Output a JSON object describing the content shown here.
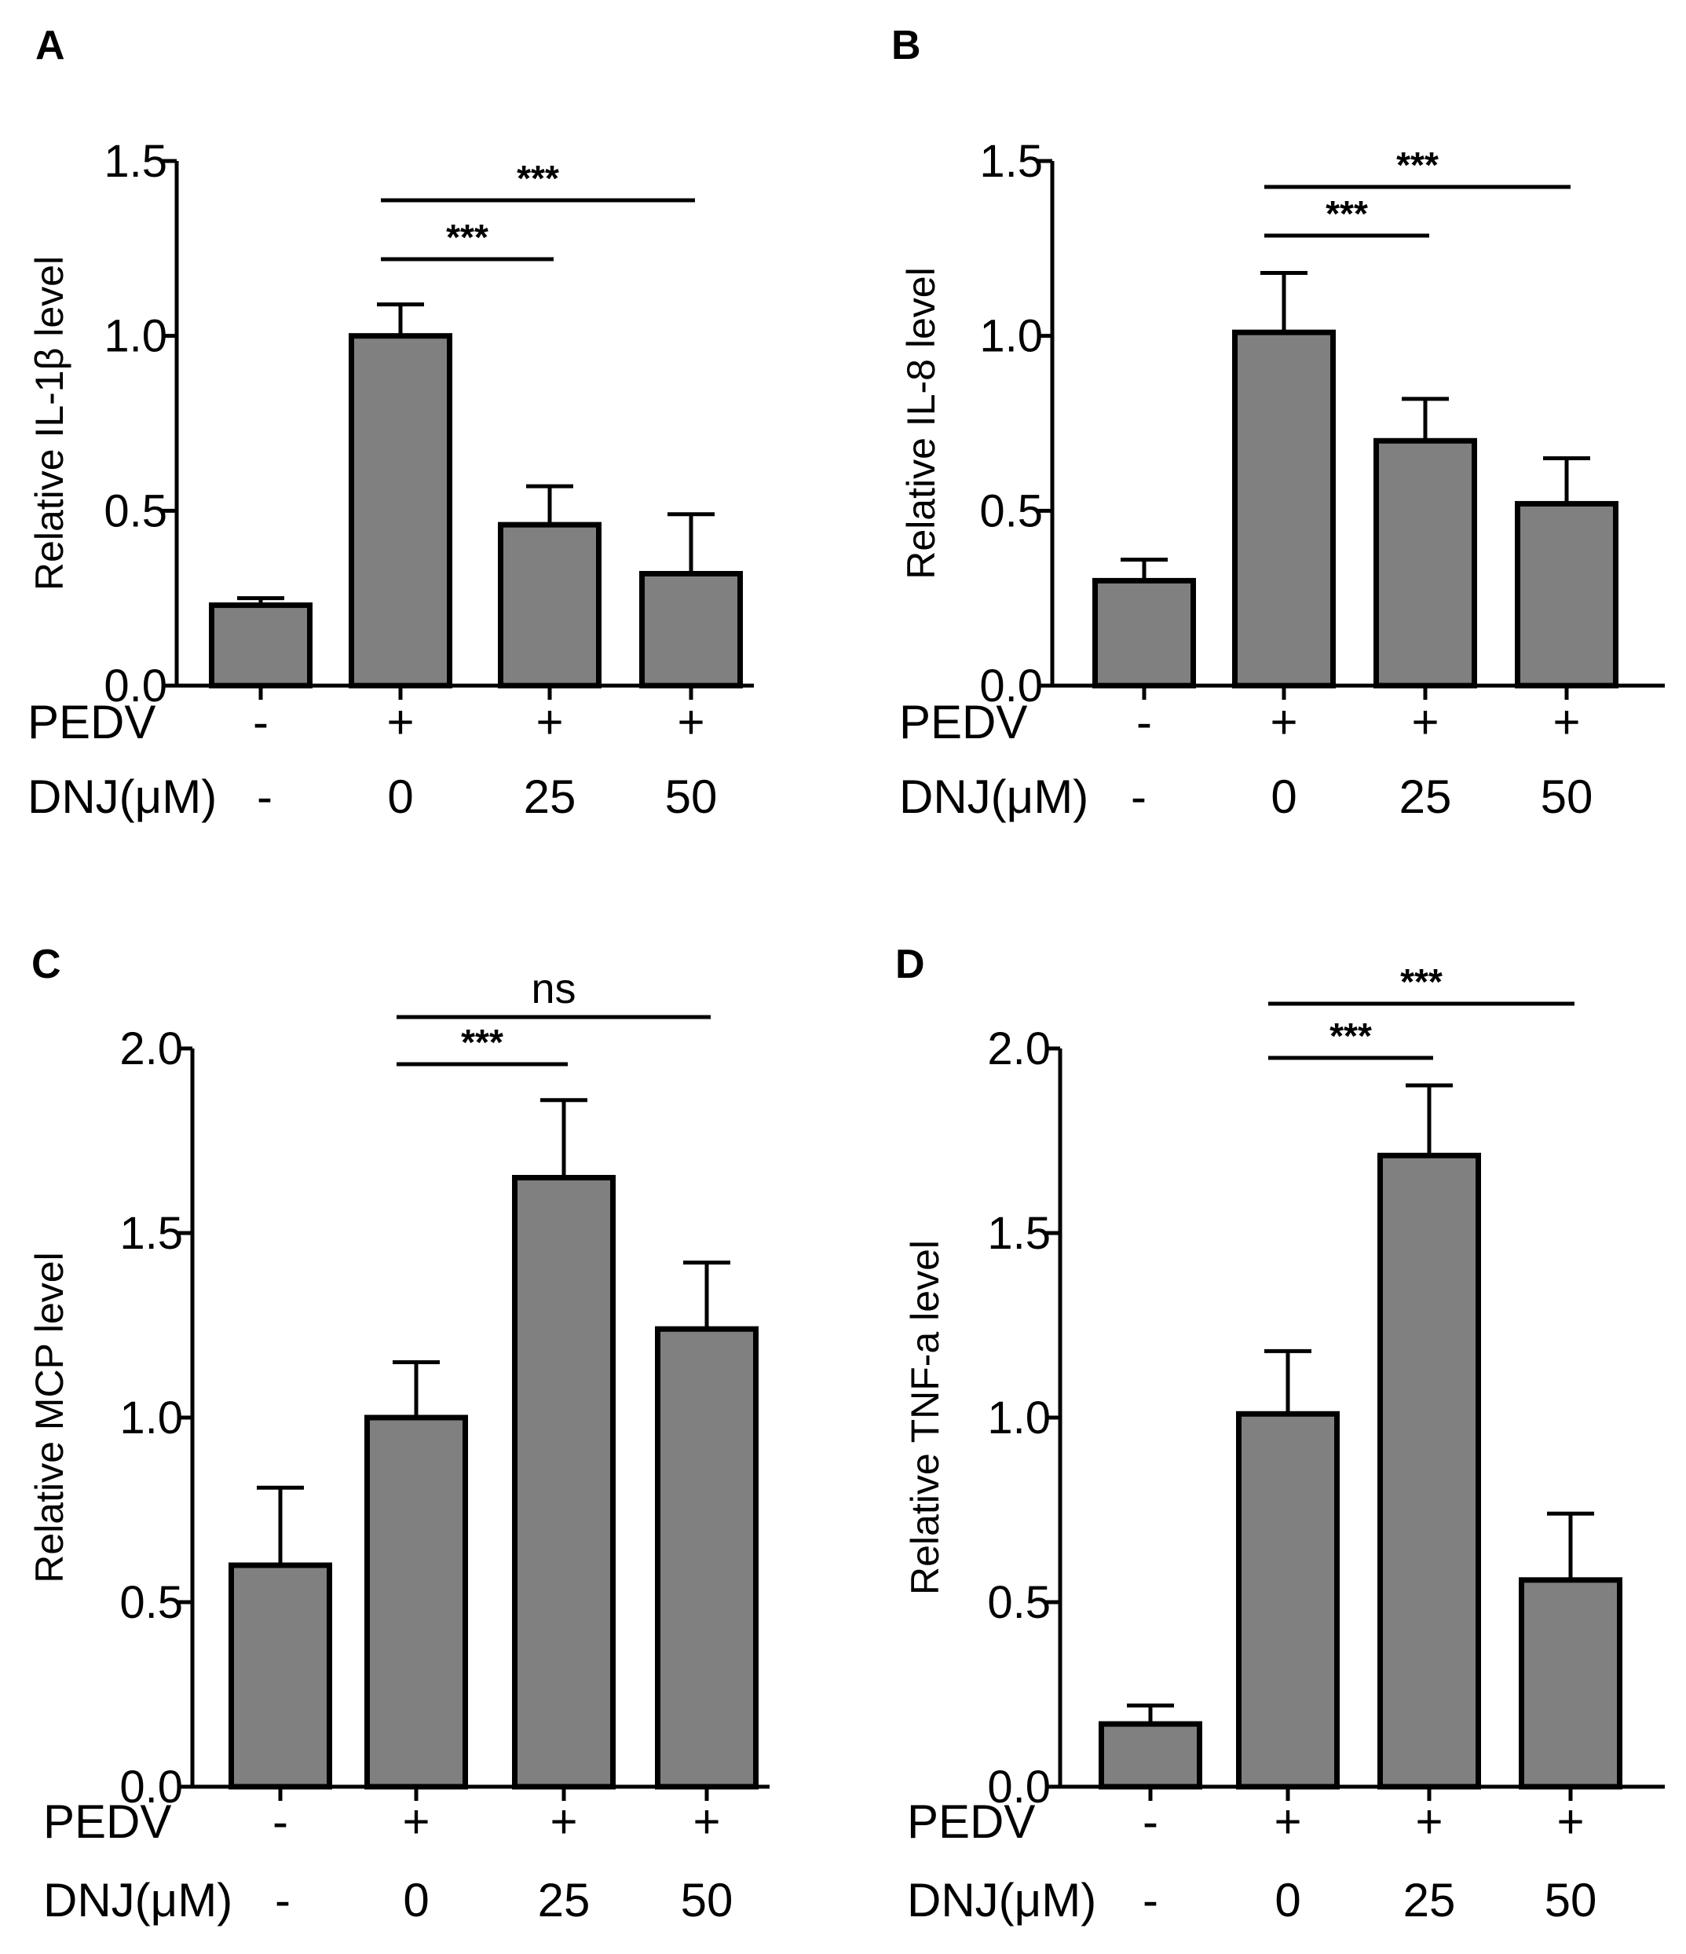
{
  "chart_data": [
    {
      "panel": "A",
      "type": "bar",
      "ylabel": "Relative IL-1β level",
      "ylim": [
        0,
        1.5
      ],
      "yticks": [
        "0.0",
        "0.5",
        "1.0",
        "1.5"
      ],
      "row_labels": [
        "PEDV",
        "DNJ(μM)"
      ],
      "conditions": {
        "PEDV": [
          "-",
          "+",
          "+",
          "+"
        ],
        "DNJ": [
          "-",
          "0",
          "25",
          "50"
        ]
      },
      "values": [
        0.23,
        1.0,
        0.46,
        0.32
      ],
      "errors": [
        0.02,
        0.09,
        0.11,
        0.17
      ],
      "significance": [
        {
          "from": 1,
          "to": 2,
          "label": "***"
        },
        {
          "from": 1,
          "to": 3,
          "label": "***"
        }
      ]
    },
    {
      "panel": "B",
      "type": "bar",
      "ylabel": "Relative IL-8 level",
      "ylim": [
        0,
        1.5
      ],
      "yticks": [
        "0.0",
        "0.5",
        "1.0",
        "1.5"
      ],
      "row_labels": [
        "PEDV",
        "DNJ(μM)"
      ],
      "conditions": {
        "PEDV": [
          "-",
          "+",
          "+",
          "+"
        ],
        "DNJ": [
          "-",
          "0",
          "25",
          "50"
        ]
      },
      "values": [
        0.3,
        1.01,
        0.7,
        0.52
      ],
      "errors": [
        0.06,
        0.17,
        0.12,
        0.13
      ],
      "significance": [
        {
          "from": 1,
          "to": 2,
          "label": "***"
        },
        {
          "from": 1,
          "to": 3,
          "label": "***"
        }
      ]
    },
    {
      "panel": "C",
      "type": "bar",
      "ylabel": "Relative MCP level",
      "ylim": [
        0,
        2.0
      ],
      "yticks": [
        "0.0",
        "0.5",
        "1.0",
        "1.5",
        "2.0"
      ],
      "row_labels": [
        "PEDV",
        "DNJ(μM)"
      ],
      "conditions": {
        "PEDV": [
          "-",
          "+",
          "+",
          "+"
        ],
        "DNJ": [
          "-",
          "0",
          "25",
          "50"
        ]
      },
      "values": [
        0.6,
        1.0,
        1.65,
        1.24
      ],
      "errors": [
        0.21,
        0.15,
        0.21,
        0.18
      ],
      "significance": [
        {
          "from": 1,
          "to": 2,
          "label": "***"
        },
        {
          "from": 1,
          "to": 3,
          "label": "ns"
        }
      ]
    },
    {
      "panel": "D",
      "type": "bar",
      "ylabel": "Relative TNF-a  level",
      "ylim": [
        0,
        2.0
      ],
      "yticks": [
        "0.0",
        "0.5",
        "1.0",
        "1.5",
        "2.0"
      ],
      "row_labels": [
        "PEDV",
        "DNJ(μM)"
      ],
      "conditions": {
        "PEDV": [
          "-",
          "+",
          "+",
          "+"
        ],
        "DNJ": [
          "-",
          "0",
          "25",
          "50"
        ]
      },
      "values": [
        0.17,
        1.01,
        1.71,
        0.56
      ],
      "errors": [
        0.05,
        0.17,
        0.19,
        0.18
      ],
      "significance": [
        {
          "from": 1,
          "to": 2,
          "label": "***"
        },
        {
          "from": 1,
          "to": 3,
          "label": "***"
        }
      ]
    }
  ],
  "colors": {
    "bar_fill": "#808080",
    "stroke": "#000000",
    "background": "#ffffff"
  }
}
